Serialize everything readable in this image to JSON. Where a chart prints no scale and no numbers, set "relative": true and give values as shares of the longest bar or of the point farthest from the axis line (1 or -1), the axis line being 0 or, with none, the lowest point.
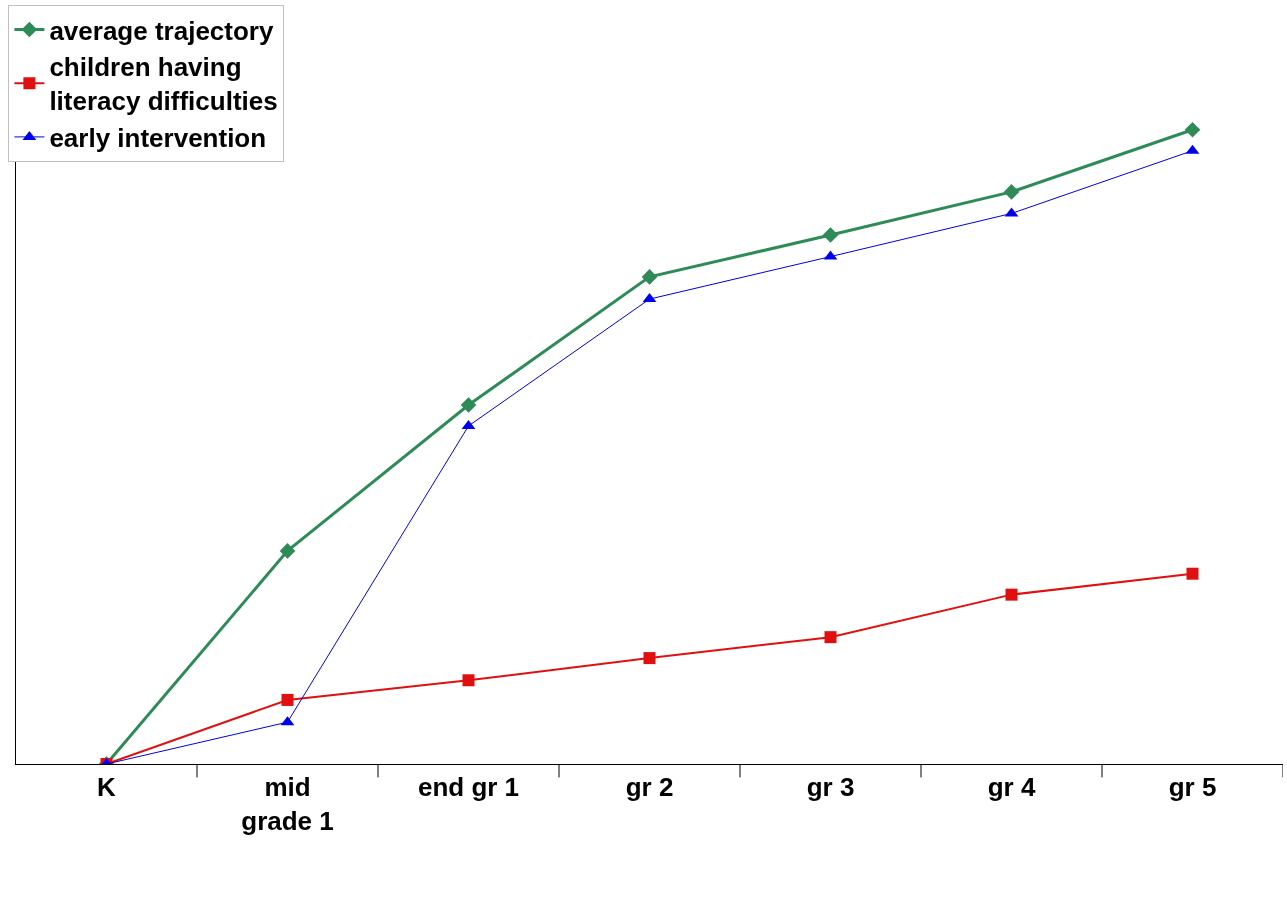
{
  "chart_data": {
    "type": "line",
    "relative": true,
    "categories": [
      "K",
      "mid\ngrade 1",
      "end gr 1",
      "gr 2",
      "gr 3",
      "gr 4",
      "gr 5"
    ],
    "series": [
      {
        "name": "average trajectory",
        "color": "#2e8b57",
        "marker": "diamond",
        "values": [
          0,
          0.336,
          0.566,
          0.768,
          0.834,
          0.902,
          1
        ]
      },
      {
        "name": "children having\nliteracy difficulties",
        "color": "#e01010",
        "marker": "square",
        "values": [
          0,
          0.101,
          0.132,
          0.167,
          0.2,
          0.267,
          0.3
        ]
      },
      {
        "name": "early intervention",
        "color": "#0000ee",
        "marker": "triangle",
        "values": [
          0,
          0.066,
          0.533,
          0.733,
          0.8,
          0.868,
          0.967
        ]
      }
    ],
    "legend": "top left",
    "grid": false,
    "line_style": "solid"
  }
}
